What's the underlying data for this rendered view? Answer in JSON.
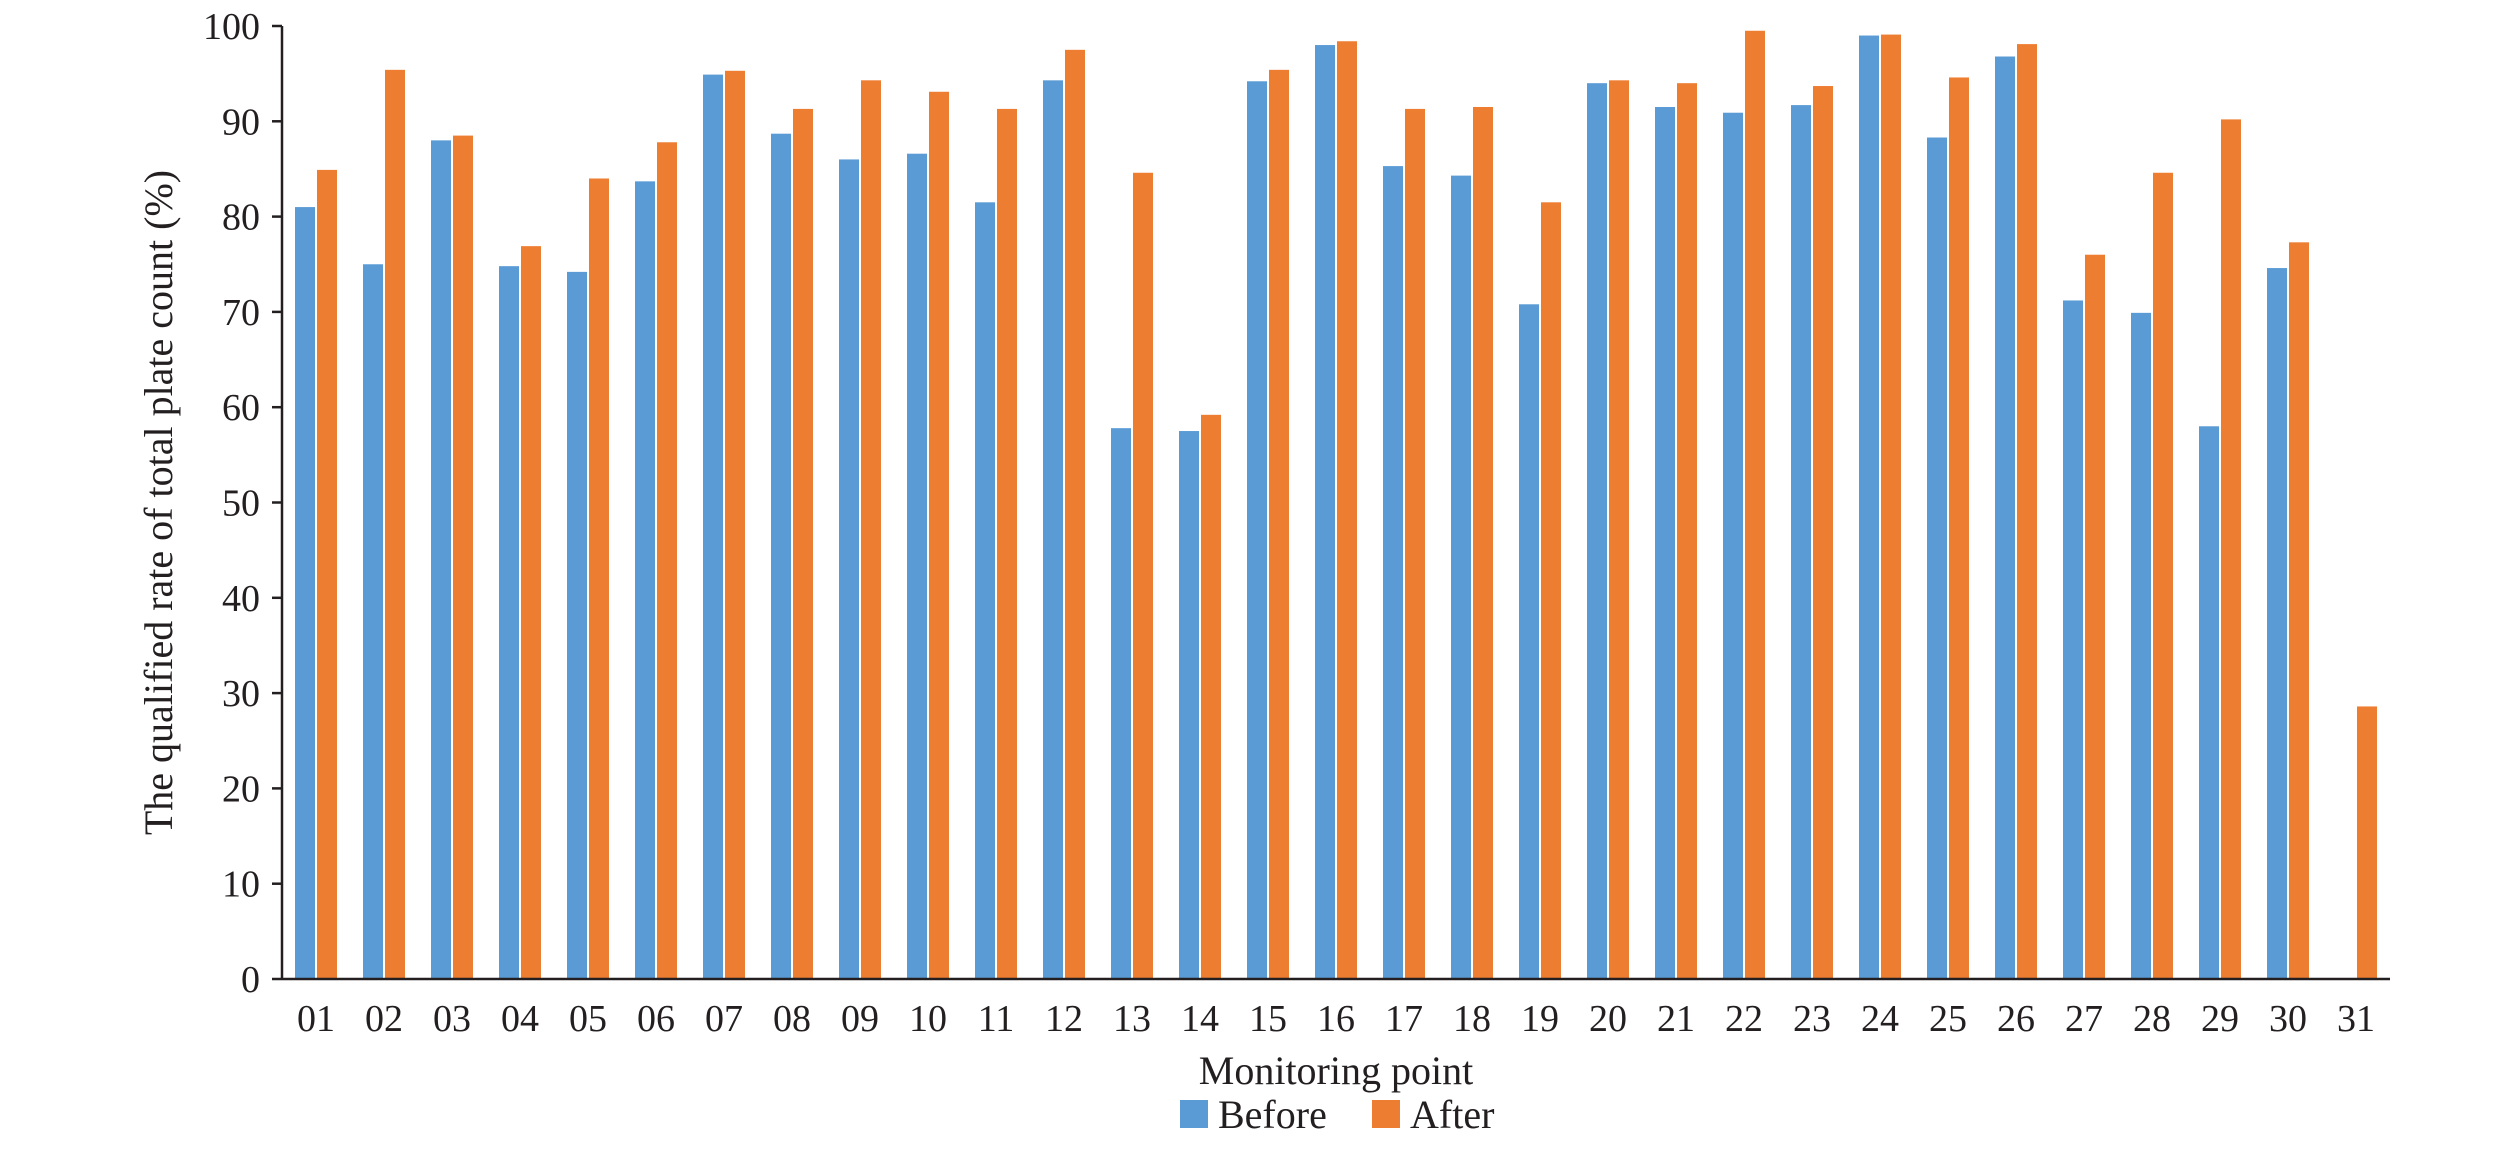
{
  "chart_data": {
    "type": "bar",
    "xlabel": "Monitoring point",
    "ylabel": "The qualified rate of total plate count (%)",
    "ylim": [
      0,
      100
    ],
    "yticks": [
      "0",
      "10",
      "20",
      "30",
      "40",
      "50",
      "60",
      "70",
      "80",
      "90",
      "100"
    ],
    "grid": false,
    "legend_position": "bottom-center",
    "categories": [
      "01",
      "02",
      "03",
      "04",
      "05",
      "06",
      "07",
      "08",
      "09",
      "10",
      "11",
      "12",
      "13",
      "14",
      "15",
      "16",
      "17",
      "18",
      "19",
      "20",
      "21",
      "22",
      "23",
      "24",
      "25",
      "26",
      "27",
      "28",
      "29",
      "30",
      "31"
    ],
    "series": [
      {
        "name": "Before",
        "color": "#5b9bd5",
        "values": [
          81.0,
          75.0,
          88.0,
          74.8,
          74.2,
          83.7,
          94.9,
          88.7,
          86.0,
          86.6,
          81.5,
          94.3,
          57.8,
          57.5,
          94.2,
          98.0,
          85.3,
          84.3,
          70.8,
          94.0,
          91.5,
          90.9,
          91.7,
          99.0,
          88.3,
          96.8,
          71.2,
          69.9,
          58.0,
          74.6,
          null
        ]
      },
      {
        "name": "After",
        "color": "#ed7d31",
        "values": [
          84.9,
          95.4,
          88.5,
          76.9,
          84.0,
          87.8,
          95.3,
          91.3,
          94.3,
          93.1,
          91.3,
          97.5,
          84.6,
          59.2,
          95.4,
          98.4,
          91.3,
          91.5,
          81.5,
          94.3,
          94.0,
          99.5,
          93.7,
          99.1,
          94.6,
          98.1,
          76.0,
          84.6,
          90.2,
          77.3,
          28.6
        ]
      }
    ]
  }
}
